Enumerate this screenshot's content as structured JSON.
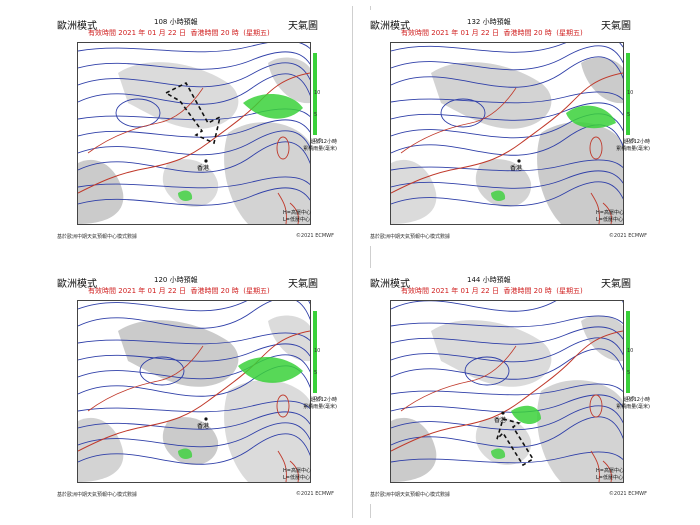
{
  "page": {
    "panels": [
      {
        "model_label": "歐洲模式",
        "forecast_label": "108 小時預報",
        "valid_prefix": "有效時間",
        "valid_date": "2021 年 01 月 22 日",
        "valid_time": "香港時間 20 時",
        "valid_day": "(星期五)",
        "chart_label": "天氣圖",
        "city_label": "香港",
        "colorbar_ticks": [
          "10",
          "5",
          "0.5"
        ],
        "colorbar_note_line1": "過去12小時",
        "colorbar_note_line2": "累積雨量(毫米)",
        "legend_h": "H=高壓中心",
        "legend_l": "L=低壓中心",
        "credit_left": "基於歐洲中期天氣預報中心模式數據",
        "credit_right": "©2021 ECMWF",
        "arrow": "down-right"
      },
      {
        "model_label": "歐洲模式",
        "forecast_label": "132 小時預報",
        "valid_prefix": "有效時間",
        "valid_date": "2021 年 01 月 22 日",
        "valid_time": "香港時間 20 時",
        "valid_day": "(星期五)",
        "chart_label": "天氣圖",
        "city_label": "香港",
        "colorbar_ticks": [
          "10",
          "5",
          "0.5"
        ],
        "colorbar_note_line1": "過去12小時",
        "colorbar_note_line2": "累積雨量(毫米)",
        "legend_h": "H=高壓中心",
        "legend_l": "L=低壓中心",
        "credit_left": "基於歐洲中期天氣預報中心模式數據",
        "credit_right": "©2021 ECMWF",
        "arrow": ""
      },
      {
        "model_label": "歐洲模式",
        "forecast_label": "120 小時預報",
        "valid_prefix": "有效時間",
        "valid_date": "2021 年 01 月 22 日",
        "valid_time": "香港時間 20 時",
        "valid_day": "(星期五)",
        "chart_label": "天氣圖",
        "city_label": "香港",
        "colorbar_ticks": [
          "10",
          "5",
          "0.5"
        ],
        "colorbar_note_line1": "過去12小時",
        "colorbar_note_line2": "累積雨量(毫米)",
        "legend_h": "H=高壓中心",
        "legend_l": "L=低壓中心",
        "credit_left": "基於歐洲中期天氣預報中心模式數據",
        "credit_right": "©2021 ECMWF",
        "arrow": ""
      },
      {
        "model_label": "歐洲模式",
        "forecast_label": "144 小時預報",
        "valid_prefix": "有效時間",
        "valid_date": "2021 年 01 月 22 日",
        "valid_time": "香港時間 20 時",
        "valid_day": "(星期五)",
        "chart_label": "天氣圖",
        "city_label": "香港",
        "colorbar_ticks": [
          "10",
          "5",
          "0.5"
        ],
        "colorbar_note_line1": "過去12小時",
        "colorbar_note_line2": "累積雨量(毫米)",
        "legend_h": "H=高壓中心",
        "legend_l": "L=低壓中心",
        "credit_left": "基於歐洲中期天氣預報中心模式數據",
        "credit_right": "©2021 ECMWF",
        "arrow": "up-left"
      }
    ],
    "colors": {
      "isobar": "#2f3fa8",
      "coast": "#c0392b",
      "rain": "#39d139",
      "cloud": "#bdbdbd",
      "title_red": "#d02020"
    }
  }
}
